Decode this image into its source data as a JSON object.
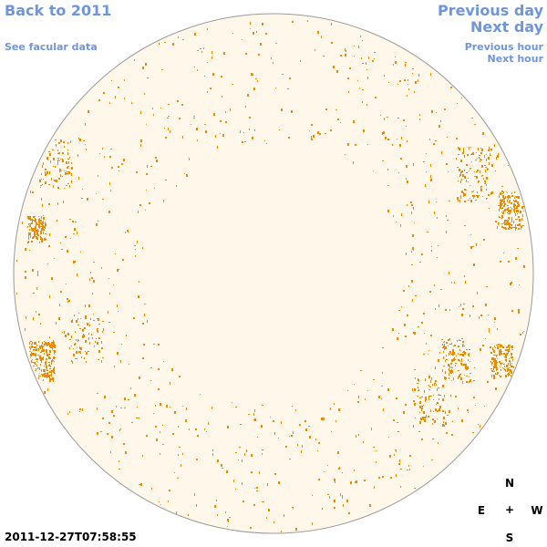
{
  "nav": {
    "back_label": "Back to 2011",
    "facular_label": "See facular data",
    "prev_day_label": "Previous day",
    "next_day_label": "Next day",
    "prev_hour_label": "Previous hour",
    "next_hour_label": "Next hour"
  },
  "timestamp": "2011-12-27T07:58:55",
  "compass": {
    "north": "N",
    "east": "E",
    "center": "+",
    "west": "W",
    "south": "S"
  },
  "colors": {
    "link": "#6f95dc",
    "disk_fill": "#fff8ea",
    "disk_edge": "#9a9a9a",
    "feature": "#ef8a00"
  }
}
